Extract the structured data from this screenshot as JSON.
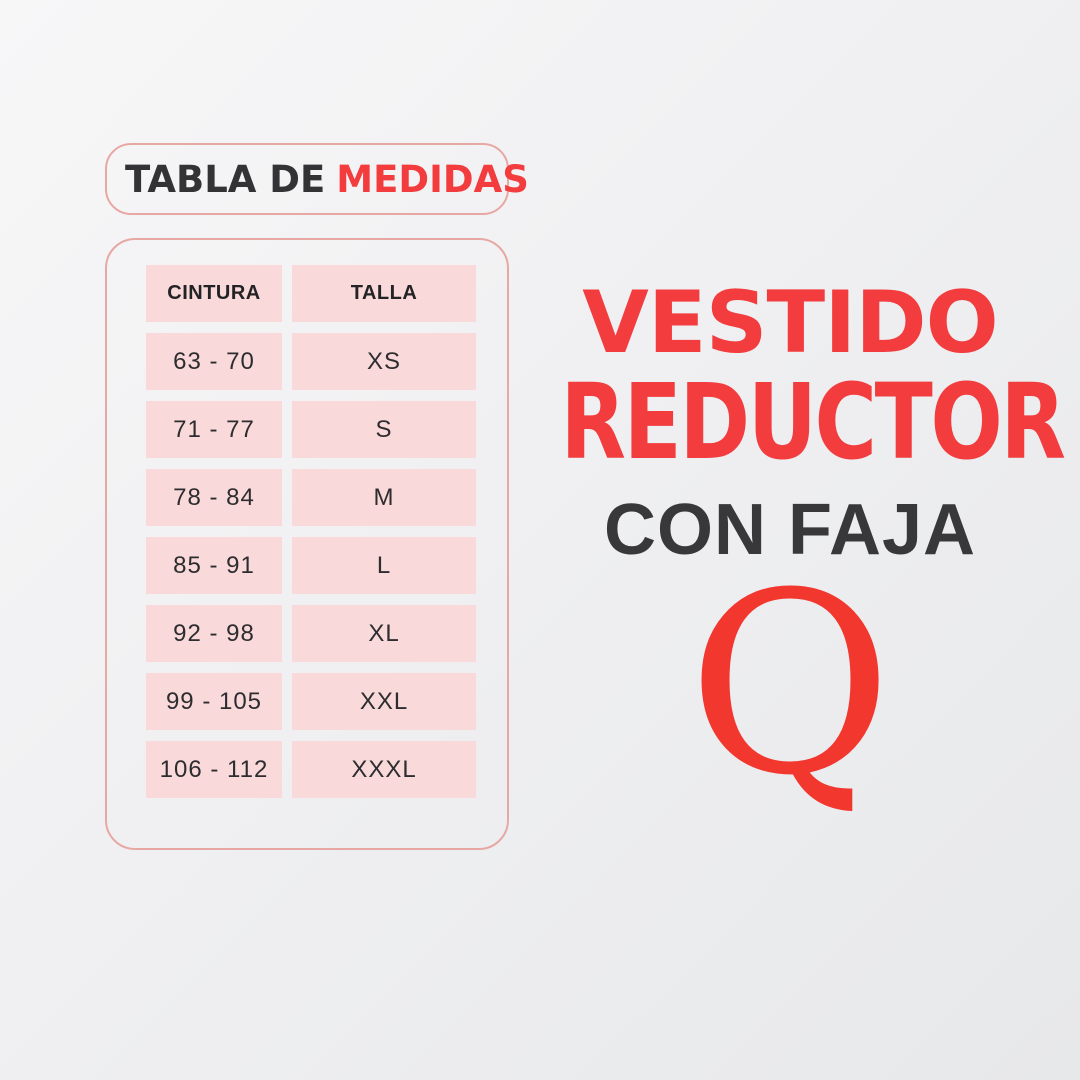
{
  "chart_data": {
    "type": "table",
    "title": "TABLA DE MEDIDAS",
    "columns": [
      "CINTURA",
      "TALLA"
    ],
    "rows": [
      [
        "63 - 70",
        "XS"
      ],
      [
        "71 - 77",
        "S"
      ],
      [
        "78 - 84",
        "M"
      ],
      [
        "85 - 91",
        "L"
      ],
      [
        "92 - 98",
        "XL"
      ],
      [
        "99 - 105",
        "XXL"
      ],
      [
        "106 - 112",
        "XXXL"
      ]
    ]
  },
  "size_chart": {
    "title_prefix": "TABLA DE",
    "title_highlight": "MEDIDAS"
  },
  "headline": {
    "line1": "VESTIDO",
    "line2": "REDUCTOR",
    "subline": "CON FAJA"
  },
  "brand": {
    "letter": "Q"
  },
  "colors": {
    "accent_red": "#f23c3e",
    "dark_text": "#333336",
    "cell_pink": "#f9d9d9",
    "border_rose": "#e7a8a4",
    "background": "#efeff1"
  }
}
